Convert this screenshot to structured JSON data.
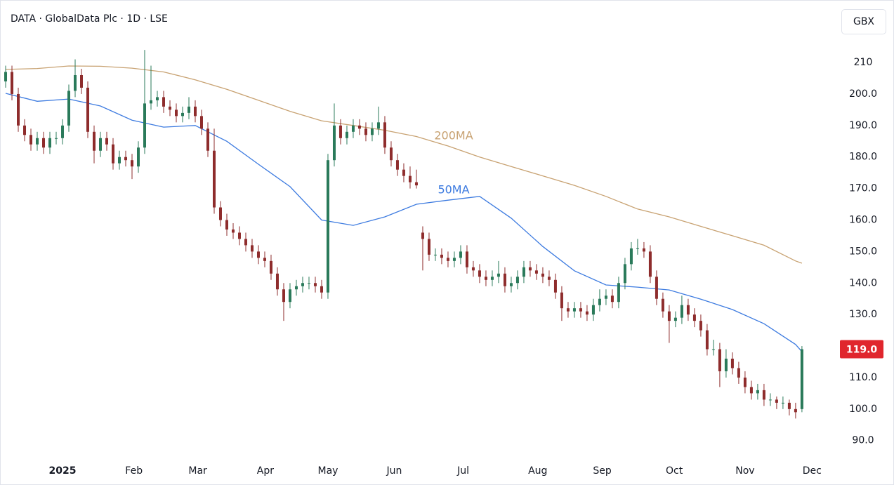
{
  "chart_data": {
    "type": "candlestick",
    "title": "DATA · GlobalData Plc · 1D · LSE",
    "currency_button": "GBX",
    "up_color": "#2a7a5a",
    "down_color": "#8e2c2c",
    "ohlc": [
      [
        204,
        209,
        202,
        207
      ],
      [
        207,
        209,
        198,
        200
      ],
      [
        200,
        202,
        188,
        190
      ],
      [
        190,
        192,
        185,
        187
      ],
      [
        187,
        189,
        182,
        184
      ],
      [
        184,
        188,
        182,
        186
      ],
      [
        186,
        188,
        181,
        183
      ],
      [
        183,
        188,
        181,
        186
      ],
      [
        186,
        188,
        184,
        186
      ],
      [
        186,
        192,
        184,
        190
      ],
      [
        190,
        203,
        188,
        201
      ],
      [
        201,
        211,
        199,
        206
      ],
      [
        206,
        208,
        200,
        202
      ],
      [
        202,
        204,
        186,
        188
      ],
      [
        188,
        190,
        178,
        182
      ],
      [
        182,
        188,
        180,
        186
      ],
      [
        186,
        188,
        182,
        184
      ],
      [
        184,
        186,
        176,
        178
      ],
      [
        178,
        182,
        176,
        180
      ],
      [
        180,
        182,
        177,
        179
      ],
      [
        179,
        181,
        173,
        177
      ],
      [
        177,
        185,
        175,
        183
      ],
      [
        183,
        214,
        181,
        197
      ],
      [
        197,
        209,
        195,
        198
      ],
      [
        198,
        201,
        196,
        199
      ],
      [
        199,
        201,
        194,
        196
      ],
      [
        196,
        198,
        193,
        195
      ],
      [
        195,
        197,
        191,
        193
      ],
      [
        193,
        196,
        191,
        194
      ],
      [
        194,
        199,
        192,
        196
      ],
      [
        196,
        198,
        191,
        193
      ],
      [
        193,
        195,
        187,
        189
      ],
      [
        189,
        191,
        180,
        182
      ],
      [
        182,
        189,
        162,
        164
      ],
      [
        164,
        166,
        158,
        160
      ],
      [
        160,
        162,
        155,
        157
      ],
      [
        157,
        159,
        154,
        156
      ],
      [
        156,
        158,
        152,
        154
      ],
      [
        154,
        156,
        150,
        152
      ],
      [
        152,
        154,
        148,
        150
      ],
      [
        150,
        152,
        146,
        148
      ],
      [
        148,
        150,
        145,
        147
      ],
      [
        147,
        149,
        141,
        143
      ],
      [
        143,
        145,
        136,
        138
      ],
      [
        138,
        140,
        128,
        134
      ],
      [
        134,
        140,
        132,
        138
      ],
      [
        138,
        141,
        136,
        139
      ],
      [
        139,
        142,
        137,
        140
      ],
      [
        140,
        142,
        138,
        140
      ],
      [
        140,
        142,
        137,
        139
      ],
      [
        139,
        141,
        135,
        137
      ],
      [
        137,
        181,
        135,
        179
      ],
      [
        179,
        197,
        177,
        190
      ],
      [
        190,
        192,
        184,
        186
      ],
      [
        186,
        190,
        184,
        188
      ],
      [
        188,
        192,
        186,
        190
      ],
      [
        190,
        192,
        187,
        189
      ],
      [
        189,
        191,
        185,
        187
      ],
      [
        187,
        191,
        185,
        189
      ],
      [
        189,
        196,
        187,
        191
      ],
      [
        191,
        193,
        181,
        183
      ],
      [
        183,
        185,
        177,
        179
      ],
      [
        179,
        181,
        174,
        176
      ],
      [
        176,
        178,
        172,
        174
      ],
      [
        174,
        177,
        170,
        172
      ],
      [
        172,
        176,
        170,
        171
      ],
      [
        156,
        158,
        144,
        154
      ],
      [
        154,
        156,
        147,
        149
      ],
      [
        149,
        151,
        147,
        149
      ],
      [
        149,
        151,
        146,
        148
      ],
      [
        148,
        150,
        145,
        147
      ],
      [
        147,
        150,
        145,
        148
      ],
      [
        148,
        152,
        146,
        150
      ],
      [
        150,
        152,
        143,
        145
      ],
      [
        145,
        147,
        142,
        144
      ],
      [
        144,
        146,
        140,
        142
      ],
      [
        142,
        144,
        139,
        141
      ],
      [
        141,
        144,
        139,
        142
      ],
      [
        142,
        147,
        140,
        143
      ],
      [
        143,
        145,
        137,
        139
      ],
      [
        139,
        142,
        137,
        140
      ],
      [
        140,
        144,
        138,
        142
      ],
      [
        142,
        147,
        140,
        145
      ],
      [
        145,
        147,
        142,
        144
      ],
      [
        144,
        146,
        141,
        143
      ],
      [
        143,
        145,
        140,
        142
      ],
      [
        142,
        144,
        139,
        141
      ],
      [
        141,
        143,
        135,
        137
      ],
      [
        137,
        139,
        128,
        132
      ],
      [
        132,
        134,
        129,
        131
      ],
      [
        131,
        134,
        129,
        132
      ],
      [
        132,
        134,
        129,
        131
      ],
      [
        131,
        133,
        128,
        130
      ],
      [
        130,
        135,
        128,
        133
      ],
      [
        133,
        138,
        131,
        135
      ],
      [
        135,
        138,
        133,
        136
      ],
      [
        136,
        138,
        132,
        134
      ],
      [
        134,
        142,
        132,
        140
      ],
      [
        140,
        148,
        138,
        146
      ],
      [
        146,
        153,
        144,
        151
      ],
      [
        151,
        154,
        149,
        151
      ],
      [
        151,
        153,
        148,
        150
      ],
      [
        150,
        152,
        140,
        142
      ],
      [
        142,
        144,
        133,
        135
      ],
      [
        135,
        137,
        129,
        131
      ],
      [
        131,
        133,
        121,
        128
      ],
      [
        128,
        131,
        126,
        129
      ],
      [
        129,
        136,
        127,
        133
      ],
      [
        133,
        135,
        128,
        130
      ],
      [
        130,
        132,
        126,
        128
      ],
      [
        128,
        130,
        123,
        125
      ],
      [
        125,
        127,
        117,
        119
      ],
      [
        119,
        122,
        117,
        119
      ],
      [
        119,
        121,
        107,
        112
      ],
      [
        112,
        119,
        110,
        116
      ],
      [
        116,
        118,
        111,
        113
      ],
      [
        113,
        115,
        108,
        110
      ],
      [
        110,
        112,
        105,
        107
      ],
      [
        107,
        109,
        103,
        105
      ],
      [
        105,
        108,
        103,
        106
      ],
      [
        106,
        108,
        101,
        103
      ],
      [
        103,
        105,
        101,
        103
      ],
      [
        103,
        104,
        100,
        102
      ],
      [
        102,
        104,
        100,
        102
      ],
      [
        102,
        103,
        98,
        100
      ],
      [
        100,
        102,
        97,
        99
      ],
      [
        100,
        120,
        99,
        119
      ]
    ],
    "series": [
      {
        "name": "200MA",
        "color": "#c8a272",
        "x": [
          0,
          5,
          10,
          15,
          20,
          25,
          30,
          35,
          40,
          45,
          50,
          55,
          60,
          65,
          70,
          75,
          80,
          85,
          90,
          95,
          100,
          105,
          110,
          115,
          120,
          125,
          126
        ],
        "values": [
          207.8,
          208.1,
          208.9,
          208.8,
          208.2,
          207,
          204.5,
          201.5,
          198,
          194.5,
          191.5,
          190,
          188.5,
          186.5,
          183.5,
          180,
          177,
          174,
          171,
          167.5,
          163.5,
          161,
          158,
          155,
          152,
          147,
          146.3
        ]
      },
      {
        "name": "50MA",
        "color": "#3d7be0",
        "x": [
          0,
          5,
          10,
          15,
          20,
          25,
          30,
          35,
          40,
          45,
          50,
          55,
          60,
          65,
          70,
          75,
          80,
          85,
          90,
          95,
          100,
          105,
          110,
          115,
          120,
          125,
          126
        ],
        "values": [
          200.2,
          197.7,
          198.4,
          196.2,
          191.7,
          189.5,
          190,
          185,
          177.7,
          170.6,
          160,
          158.3,
          161,
          165,
          166.3,
          167.5,
          160.6,
          151.6,
          143.9,
          139.4,
          138.7,
          137.8,
          134.9,
          131.6,
          127.1,
          120.5,
          118.2
        ]
      }
    ],
    "xlim": [
      -0.78,
      130.9
    ],
    "xticks": [
      {
        "value": 9,
        "label": "2025"
      },
      {
        "value": 20.3,
        "label": "Feb"
      },
      {
        "value": 30.4,
        "label": "Mar"
      },
      {
        "value": 41.1,
        "label": "Apr"
      },
      {
        "value": 51,
        "label": "May"
      },
      {
        "value": 61.5,
        "label": "Jun"
      },
      {
        "value": 72.4,
        "label": "Jul"
      },
      {
        "value": 84.2,
        "label": "Aug"
      },
      {
        "value": 94.4,
        "label": "Sep"
      },
      {
        "value": 105.8,
        "label": "Oct"
      },
      {
        "value": 117,
        "label": "Nov"
      },
      {
        "value": 127.6,
        "label": "Dec"
      }
    ],
    "ylim": [
      83.7,
      228.5
    ],
    "yticks": [
      210,
      {
        "value": 200,
        "label": "200.0"
      },
      {
        "value": 190,
        "label": "190.0"
      },
      {
        "value": 180,
        "label": "180.0"
      },
      {
        "value": 170,
        "label": "170.0"
      },
      {
        "value": 160,
        "label": "160.0"
      },
      {
        "value": 150,
        "label": "150.0"
      },
      {
        "value": 140,
        "label": "140.0"
      },
      {
        "value": 130,
        "label": "130.0"
      },
      {
        "value": 120,
        "label": "120.0"
      },
      {
        "value": 110,
        "label": "110.0"
      },
      {
        "value": 100,
        "label": "100.0"
      },
      {
        "value": 90,
        "label": "90.0"
      }
    ],
    "last_price": {
      "value": 119,
      "label": "119.0"
    },
    "last_price_color": "#e0262d"
  }
}
